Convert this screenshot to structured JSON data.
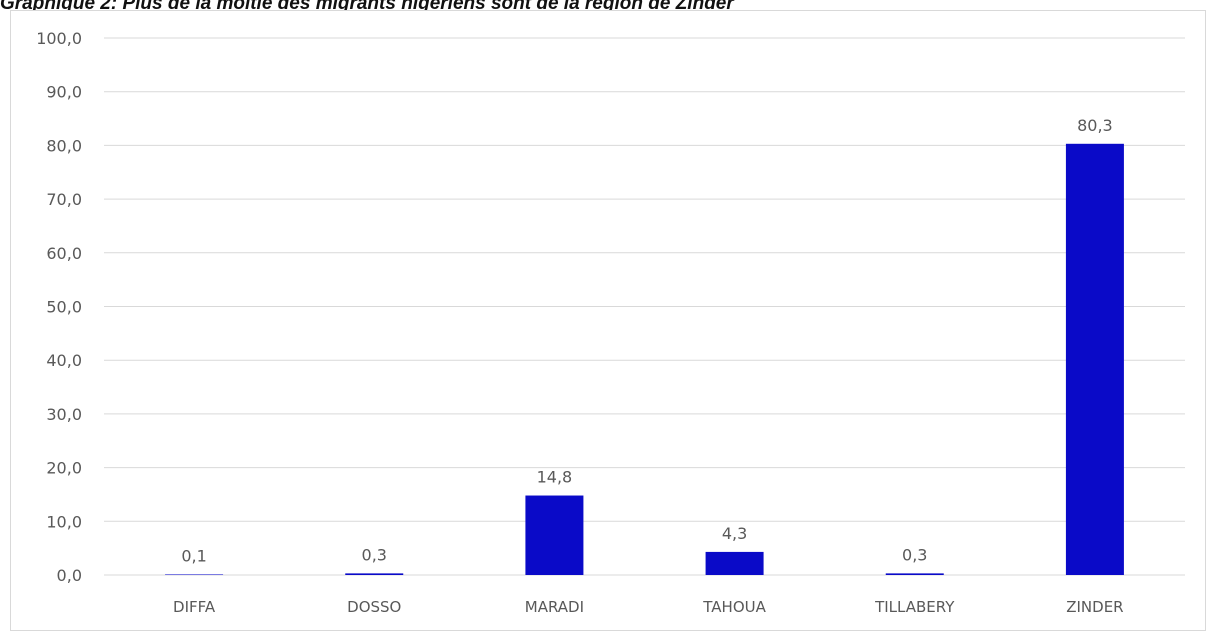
{
  "chart_data": {
    "type": "bar",
    "title": "Graphique 2: Plus de la moitié des migrants nigériens sont de la région de Zinder",
    "categories": [
      "DIFFA",
      "DOSSO",
      "MARADI",
      "TAHOUA",
      "TILLABERY",
      "ZINDER"
    ],
    "values": [
      0.1,
      0.3,
      14.8,
      4.3,
      0.3,
      80.3
    ],
    "value_labels": [
      "0,1",
      "0,3",
      "14,8",
      "4,3",
      "0,3",
      "80,3"
    ],
    "y_ticks": [
      "0,0",
      "10,0",
      "20,0",
      "30,0",
      "40,0",
      "50,0",
      "60,0",
      "70,0",
      "80,0",
      "90,0",
      "100,0"
    ],
    "ylim": [
      0,
      100
    ],
    "xlabel": "",
    "ylabel": "",
    "grid": true,
    "legend": "none",
    "bar_color": "#0a0ac8",
    "grid_color": "#d9d9d9"
  }
}
